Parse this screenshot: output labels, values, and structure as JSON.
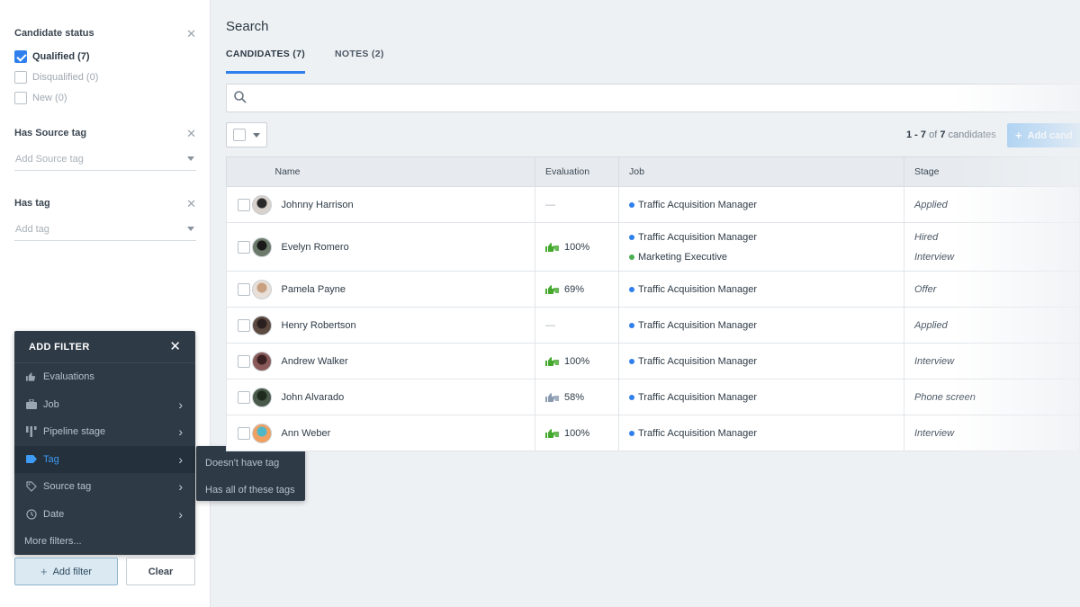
{
  "sidebar": {
    "candidate_status": {
      "title": "Candidate status",
      "options": [
        {
          "label": "Qualified (7)",
          "checked": true
        },
        {
          "label": "Disqualified (0)",
          "checked": false
        },
        {
          "label": "New (0)",
          "checked": false
        }
      ]
    },
    "source_tag": {
      "title": "Has Source tag",
      "placeholder": "Add Source tag"
    },
    "tag": {
      "title": "Has tag",
      "placeholder": "Add tag"
    },
    "add_filter_menu": {
      "title": "ADD FILTER",
      "items": [
        {
          "label": "Evaluations",
          "icon": "thumbs-icon",
          "has_submenu": false
        },
        {
          "label": "Job",
          "icon": "briefcase-icon",
          "has_submenu": true
        },
        {
          "label": "Pipeline stage",
          "icon": "pipeline-icon",
          "has_submenu": true
        },
        {
          "label": "Tag",
          "icon": "tag-icon",
          "has_submenu": true,
          "active": true
        },
        {
          "label": "Source tag",
          "icon": "source-tag-icon",
          "has_submenu": true
        },
        {
          "label": "Date",
          "icon": "clock-icon",
          "has_submenu": true
        }
      ],
      "more": "More filters..."
    },
    "tag_submenu": [
      "Doesn't have tag",
      "Has all of these tags"
    ],
    "add_filter_button": "Add filter",
    "clear_button": "Clear"
  },
  "main": {
    "title": "Search",
    "tabs": [
      {
        "label": "CANDIDATES (7)",
        "active": true
      },
      {
        "label": "NOTES (2)",
        "active": false
      }
    ],
    "search_placeholder": "",
    "counter": {
      "range": "1 - 7",
      "of": "of",
      "total": "7",
      "suffix": "candidates"
    },
    "add_button": "Add cand",
    "columns": [
      "Name",
      "Evaluation",
      "Job",
      "Stage"
    ],
    "rows": [
      {
        "name": "Johnny Harrison",
        "evaluation": "—",
        "jobs": [
          "Traffic Acquisition Manager"
        ],
        "stages": [
          "Applied"
        ]
      },
      {
        "name": "Evelyn Romero",
        "evaluation": "100%",
        "jobs": [
          "Traffic Acquisition Manager",
          "Marketing Executive"
        ],
        "stages": [
          "Hired",
          "Interview"
        ]
      },
      {
        "name": "Pamela Payne",
        "evaluation": "69%",
        "jobs": [
          "Traffic Acquisition Manager"
        ],
        "stages": [
          "Offer"
        ]
      },
      {
        "name": "Henry Robertson",
        "evaluation": "—",
        "jobs": [
          "Traffic Acquisition Manager"
        ],
        "stages": [
          "Applied"
        ]
      },
      {
        "name": "Andrew Walker",
        "evaluation": "100%",
        "jobs": [
          "Traffic Acquisition Manager"
        ],
        "stages": [
          "Interview"
        ]
      },
      {
        "name": "John Alvarado",
        "evaluation": "58%",
        "jobs": [
          "Traffic Acquisition Manager"
        ],
        "stages": [
          "Phone screen"
        ]
      },
      {
        "name": "Ann Weber",
        "evaluation": "100%",
        "jobs": [
          "Traffic Acquisition Manager"
        ],
        "stages": [
          "Interview"
        ]
      }
    ]
  },
  "colors": {
    "accent": "#2f80ed",
    "job_dot_blue": "#2f80ed",
    "job_dot_green": "#4caf50",
    "eval_positive": "#43a82c",
    "eval_mixed": "#8a9bb0",
    "menu_bg": "#2e3a46"
  }
}
